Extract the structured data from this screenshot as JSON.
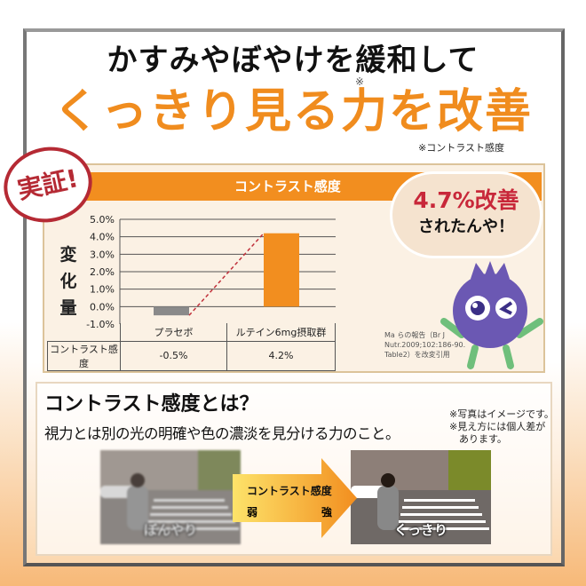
{
  "headline": {
    "line1": "かすみやぼやけを緩和して",
    "line2": "くっきり見る力を改善",
    "mark": "※",
    "footnote": "※コントラスト感度"
  },
  "stamp": "実証!",
  "chart_data": {
    "type": "bar",
    "title": "コントラスト感度",
    "ylabel": "変化量",
    "categories": [
      "プラセボ",
      "ルテイン6mg摂取群"
    ],
    "values": [
      -0.5,
      4.2
    ],
    "ylim": [
      -1.0,
      5.0
    ],
    "yticks": [
      "5.0%",
      "4.0%",
      "3.0%",
      "2.0%",
      "1.0%",
      "0.0%",
      "-1.0%"
    ],
    "ytick_values": [
      5,
      4,
      3,
      2,
      1,
      0,
      -1
    ],
    "colors": [
      "#8a8a8a",
      "#f28e1f"
    ],
    "grid": true,
    "connector": "dashed red line",
    "table": {
      "row_label": "コントラスト感度",
      "cells": [
        "-0.5%",
        "4.2%"
      ]
    }
  },
  "citation": [
    "Ma らの報告（Br J",
    "Nutr.2009;102:186-90.",
    "Table2）を改変引用"
  ],
  "bubble": {
    "line1": "4.7%改善",
    "line2": "されたんや！"
  },
  "section": {
    "title": "コントラスト感度とは？",
    "description": "視力とは別の光の明確や色の濃淡を見分ける力のこと。",
    "notes": [
      "※写真はイメージです。",
      "※見え方には個人差が",
      "　あります。"
    ],
    "left_caption": "ぼんやり",
    "right_caption": "くっきり",
    "arrow": {
      "title": "コントラスト感度",
      "weak": "弱",
      "strong": "強"
    }
  }
}
